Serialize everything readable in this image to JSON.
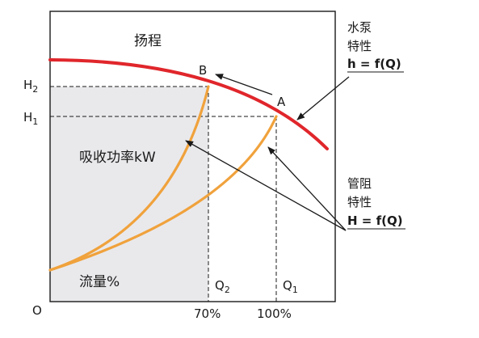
{
  "diagram": {
    "colors": {
      "pump_curve": "#e0262b",
      "system_curves": "#f0a23c",
      "shaded_region": "#e9e9ec",
      "frame": "#1a1a1a",
      "guide_lines": "#1a1a1a"
    },
    "labels": {
      "head": "扬程",
      "power": "吸收功率kW",
      "flow": "流量%",
      "origin": "O"
    },
    "y_ticks": [
      {
        "main": "H",
        "sub": "2"
      },
      {
        "main": "H",
        "sub": "1"
      }
    ],
    "x_ticks": [
      {
        "main": "Q",
        "sub": "2",
        "percent": "70%"
      },
      {
        "main": "Q",
        "sub": "1",
        "percent": "100%"
      }
    ],
    "points": {
      "a": "A",
      "b": "B"
    },
    "pump_annotation": {
      "line1": "水泵",
      "line2": "特性",
      "formula": "h = f(Q)"
    },
    "system_annotation": {
      "line1": "管阻",
      "line2": "特性",
      "formula": "H = f(Q)"
    }
  }
}
